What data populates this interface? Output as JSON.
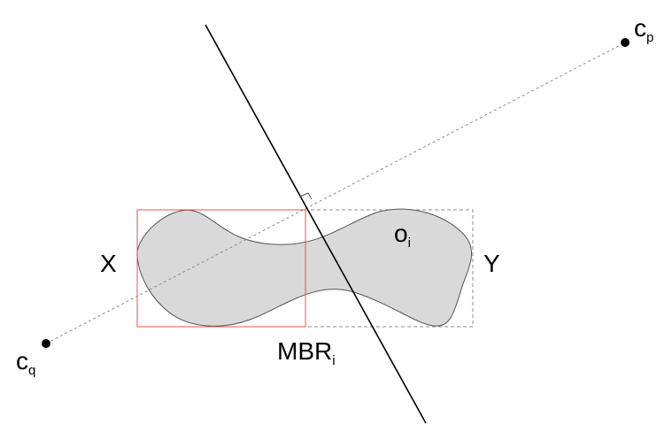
{
  "labels": {
    "cp_main": "c",
    "cp_sub": "p",
    "cq_main": "c",
    "cq_sub": "q",
    "x_label": "X",
    "y_label": "Y",
    "oi_main": "o",
    "oi_sub": "i",
    "mbr_main": "MBR",
    "mbr_sub": "i"
  },
  "colors": {
    "shape_fill": "#d9d9d9",
    "shape_stroke": "#555555",
    "red_box": "#e8524f",
    "dashed_box": "#8c8c8c",
    "dashed_line": "#8c8c8c",
    "solid_line": "#000000",
    "point": "#000000"
  }
}
